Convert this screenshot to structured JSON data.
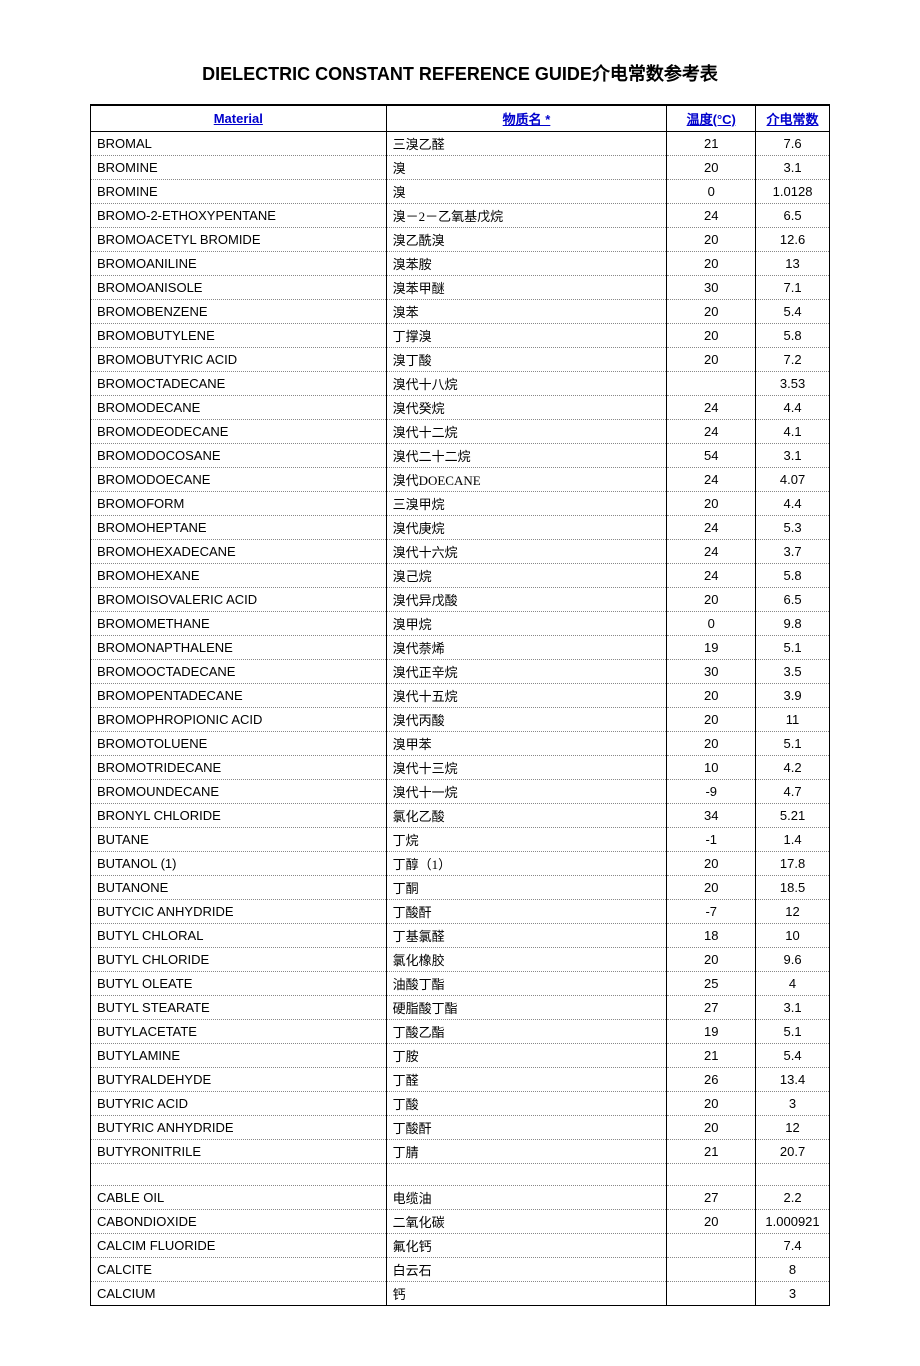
{
  "title": "DIELECTRIC CONSTANT REFERENCE GUIDE介电常数参考表",
  "columns": {
    "material": "Material",
    "name": "物质名 *",
    "temp": "温度(°C)",
    "const": "介电常数"
  },
  "rows": [
    {
      "material": "BROMAL",
      "name": "三溴乙醛",
      "temp": "21",
      "const": "7.6"
    },
    {
      "material": "BROMINE",
      "name": "溴",
      "temp": "20",
      "const": "3.1"
    },
    {
      "material": "BROMINE",
      "name": "溴",
      "temp": "0",
      "const": "1.0128"
    },
    {
      "material": "BROMO-2-ETHOXYPENTANE",
      "name": "溴－2－乙氧基戊烷",
      "temp": "24",
      "const": "6.5"
    },
    {
      "material": "BROMOACETYL BROMIDE",
      "name": "溴乙酰溴",
      "temp": "20",
      "const": "12.6"
    },
    {
      "material": "BROMOANILINE",
      "name": "溴苯胺",
      "temp": "20",
      "const": "13"
    },
    {
      "material": "BROMOANISOLE",
      "name": "溴苯甲醚",
      "temp": "30",
      "const": "7.1"
    },
    {
      "material": "BROMOBENZENE",
      "name": "溴苯",
      "temp": "20",
      "const": "5.4"
    },
    {
      "material": "BROMOBUTYLENE",
      "name": "丁撑溴",
      "temp": "20",
      "const": "5.8"
    },
    {
      "material": "BROMOBUTYRIC ACID",
      "name": "溴丁酸",
      "temp": "20",
      "const": "7.2"
    },
    {
      "material": "BROMOCTADECANE",
      "name": "溴代十八烷",
      "temp": "",
      "const": "3.53"
    },
    {
      "material": "BROMODECANE",
      "name": "溴代癸烷",
      "temp": "24",
      "const": "4.4"
    },
    {
      "material": "BROMODEODECANE",
      "name": "溴代十二烷",
      "temp": "24",
      "const": "4.1"
    },
    {
      "material": "BROMODOCOSANE",
      "name": "溴代二十二烷",
      "temp": "54",
      "const": "3.1"
    },
    {
      "material": "BROMODOECANE",
      "name": "溴代DOECANE",
      "temp": "24",
      "const": "4.07"
    },
    {
      "material": "BROMOFORM",
      "name": "三溴甲烷",
      "temp": "20",
      "const": "4.4"
    },
    {
      "material": "BROMOHEPTANE",
      "name": "溴代庚烷",
      "temp": "24",
      "const": "5.3"
    },
    {
      "material": "BROMOHEXADECANE",
      "name": "溴代十六烷",
      "temp": "24",
      "const": "3.7"
    },
    {
      "material": "BROMOHEXANE",
      "name": "溴己烷",
      "temp": "24",
      "const": "5.8"
    },
    {
      "material": "BROMOISOVALERIC ACID",
      "name": "溴代异戊酸",
      "temp": "20",
      "const": "6.5"
    },
    {
      "material": "BROMOMETHANE",
      "name": "溴甲烷",
      "temp": "0",
      "const": "9.8"
    },
    {
      "material": "BROMONAPTHALENE",
      "name": "溴代萘烯",
      "temp": "19",
      "const": "5.1"
    },
    {
      "material": "BROMOOCTADECANE",
      "name": "溴代正辛烷",
      "temp": "30",
      "const": "3.5"
    },
    {
      "material": "BROMOPENTADECANE",
      "name": "溴代十五烷",
      "temp": "20",
      "const": "3.9"
    },
    {
      "material": "BROMOPHROPIONIC ACID",
      "name": "溴代丙酸",
      "temp": "20",
      "const": "11"
    },
    {
      "material": "BROMOTOLUENE",
      "name": "溴甲苯",
      "temp": "20",
      "const": "5.1"
    },
    {
      "material": "BROMOTRIDECANE",
      "name": "溴代十三烷",
      "temp": "10",
      "const": "4.2"
    },
    {
      "material": "BROMOUNDECANE",
      "name": "溴代十一烷",
      "temp": "-9",
      "const": "4.7"
    },
    {
      "material": "BRONYL CHLORIDE",
      "name": "氯化乙酸",
      "temp": "34",
      "const": "5.21"
    },
    {
      "material": "BUTANE",
      "name": "丁烷",
      "temp": "-1",
      "const": "1.4"
    },
    {
      "material": "BUTANOL (1)",
      "name": "丁醇（1）",
      "temp": "20",
      "const": "17.8"
    },
    {
      "material": "BUTANONE",
      "name": "丁酮",
      "temp": "20",
      "const": "18.5"
    },
    {
      "material": "BUTYCIC ANHYDRIDE",
      "name": "丁酸酐",
      "temp": "-7",
      "const": "12"
    },
    {
      "material": "BUTYL CHLORAL",
      "name": "丁基氯醛",
      "temp": "18",
      "const": "10"
    },
    {
      "material": "BUTYL CHLORIDE",
      "name": "氯化橡胶",
      "temp": "20",
      "const": "9.6"
    },
    {
      "material": "BUTYL OLEATE",
      "name": "油酸丁酯",
      "temp": "25",
      "const": "4"
    },
    {
      "material": "BUTYL STEARATE",
      "name": "硬脂酸丁酯",
      "temp": "27",
      "const": "3.1"
    },
    {
      "material": "BUTYLACETATE",
      "name": "丁酸乙酯",
      "temp": "19",
      "const": "5.1"
    },
    {
      "material": "BUTYLAMINE",
      "name": "丁胺",
      "temp": "21",
      "const": "5.4"
    },
    {
      "material": "BUTYRALDEHYDE",
      "name": "丁醛",
      "temp": "26",
      "const": "13.4"
    },
    {
      "material": "BUTYRIC ACID",
      "name": "丁酸",
      "temp": "20",
      "const": "3"
    },
    {
      "material": "BUTYRIC ANHYDRIDE",
      "name": "丁酸酐",
      "temp": "20",
      "const": "12"
    },
    {
      "material": "BUTYRONITRILE",
      "name": "丁腈",
      "temp": "21",
      "const": "20.7"
    },
    {
      "blank": true
    },
    {
      "material": "CABLE OIL",
      "name": "电缆油",
      "temp": "27",
      "const": "2.2"
    },
    {
      "material": "CABONDIOXIDE",
      "name": "二氧化碳",
      "temp": "20",
      "const": "1.000921"
    },
    {
      "material": "CALCIM FLUORIDE",
      "name": "氟化钙",
      "temp": "",
      "const": "7.4"
    },
    {
      "material": "CALCITE",
      "name": "白云石",
      "temp": "",
      "const": "8"
    },
    {
      "material": "CALCIUM",
      "name": "钙",
      "temp": "",
      "const": "3"
    }
  ],
  "styling": {
    "header_color": "#0000cc",
    "border_color": "#000000",
    "dotted_color": "#888888",
    "background": "#ffffff",
    "title_fontsize": 18,
    "cell_fontsize": 13
  }
}
